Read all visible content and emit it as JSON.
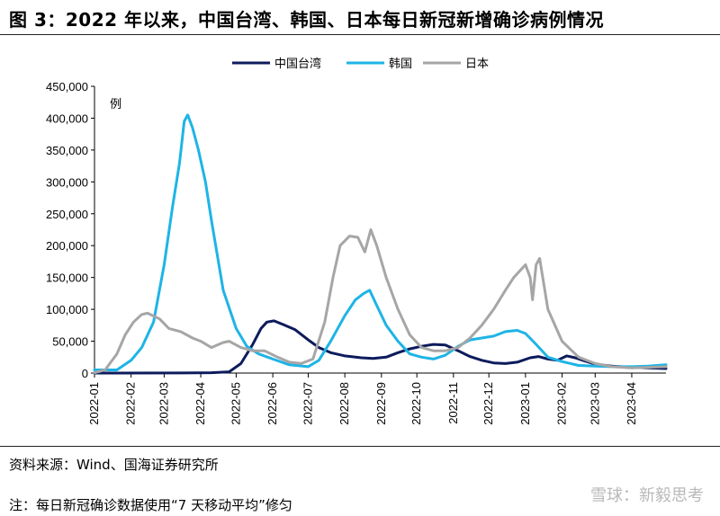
{
  "header": {
    "title": "图 3：2022 年以来，中国台湾、韩国、日本每日新冠新增确诊病例情况"
  },
  "footer": {
    "source": "资料来源：Wind、国海证券研究所",
    "note": "注：每日新冠确诊数据使用“7 天移动平均”修匀",
    "watermark": "雪球：新毅思考"
  },
  "chart_data": {
    "type": "line",
    "ylabel": "例",
    "ylim": [
      0,
      450000
    ],
    "yticks": [
      "0",
      "50,000",
      "100,000",
      "150,000",
      "200,000",
      "250,000",
      "300,000",
      "350,000",
      "400,000",
      "450,000"
    ],
    "xlim": [
      "2022-01-01",
      "2023-04-30"
    ],
    "xticks": [
      "2022-01",
      "2022-02",
      "2022-03",
      "2022-04",
      "2022-05",
      "2022-06",
      "2022-07",
      "2022-08",
      "2022-09",
      "2022-10",
      "2022-11",
      "2022-12",
      "2023-01",
      "2023-02",
      "2023-03",
      "2023-04"
    ],
    "legend_position": "top-center",
    "series": [
      {
        "name": "中国台湾",
        "color": "#0d1b5c",
        "x": [
          "2022-01-01",
          "2022-03-15",
          "2022-04-10",
          "2022-04-25",
          "2022-05-05",
          "2022-05-15",
          "2022-05-22",
          "2022-05-27",
          "2022-06-02",
          "2022-06-10",
          "2022-06-20",
          "2022-07-01",
          "2022-07-10",
          "2022-07-20",
          "2022-08-01",
          "2022-08-15",
          "2022-08-25",
          "2022-09-05",
          "2022-09-15",
          "2022-09-25",
          "2022-10-05",
          "2022-10-15",
          "2022-10-25",
          "2022-11-05",
          "2022-11-15",
          "2022-11-25",
          "2022-12-05",
          "2022-12-15",
          "2022-12-25",
          "2023-01-05",
          "2023-01-12",
          "2023-01-20",
          "2023-01-28",
          "2023-02-05",
          "2023-02-12",
          "2023-02-20",
          "2023-03-01",
          "2023-03-15",
          "2023-04-01",
          "2023-04-15",
          "2023-04-30"
        ],
        "values": [
          10,
          100,
          500,
          2000,
          15000,
          45000,
          70000,
          80000,
          82000,
          76000,
          68000,
          52000,
          40000,
          32000,
          27000,
          24000,
          23000,
          25000,
          32000,
          38000,
          42000,
          45000,
          44000,
          35000,
          26000,
          20000,
          16000,
          15000,
          17000,
          24000,
          26000,
          22000,
          20000,
          27000,
          24000,
          19000,
          14000,
          11000,
          9000,
          8000,
          7000
        ]
      },
      {
        "name": "韩国",
        "color": "#1eb4e6",
        "x": [
          "2022-01-01",
          "2022-01-20",
          "2022-02-01",
          "2022-02-10",
          "2022-02-20",
          "2022-03-01",
          "2022-03-08",
          "2022-03-14",
          "2022-03-18",
          "2022-03-21",
          "2022-03-25",
          "2022-03-30",
          "2022-04-05",
          "2022-04-10",
          "2022-04-20",
          "2022-05-01",
          "2022-05-10",
          "2022-05-20",
          "2022-06-01",
          "2022-06-15",
          "2022-07-01",
          "2022-07-10",
          "2022-07-20",
          "2022-08-01",
          "2022-08-10",
          "2022-08-17",
          "2022-08-22",
          "2022-08-27",
          "2022-09-05",
          "2022-09-15",
          "2022-09-25",
          "2022-10-05",
          "2022-10-15",
          "2022-10-25",
          "2022-11-05",
          "2022-11-15",
          "2022-11-25",
          "2022-12-05",
          "2022-12-15",
          "2022-12-25",
          "2023-01-01",
          "2023-01-10",
          "2023-01-20",
          "2023-02-01",
          "2023-02-15",
          "2023-03-01",
          "2023-03-15",
          "2023-04-01",
          "2023-04-15",
          "2023-04-30"
        ],
        "values": [
          5000,
          5000,
          20000,
          40000,
          80000,
          170000,
          260000,
          330000,
          395000,
          405000,
          385000,
          350000,
          300000,
          240000,
          130000,
          70000,
          42000,
          30000,
          22000,
          13000,
          10000,
          20000,
          50000,
          90000,
          115000,
          125000,
          130000,
          110000,
          75000,
          50000,
          30000,
          25000,
          22000,
          28000,
          42000,
          52000,
          55000,
          58000,
          65000,
          67000,
          62000,
          45000,
          25000,
          18000,
          12000,
          11000,
          10000,
          10000,
          11000,
          13000
        ]
      },
      {
        "name": "日本",
        "color": "#a6a6a6",
        "x": [
          "2022-01-01",
          "2022-01-10",
          "2022-01-20",
          "2022-01-27",
          "2022-02-03",
          "2022-02-10",
          "2022-02-15",
          "2022-02-25",
          "2022-03-05",
          "2022-03-15",
          "2022-03-25",
          "2022-04-01",
          "2022-04-10",
          "2022-04-20",
          "2022-04-25",
          "2022-05-05",
          "2022-05-15",
          "2022-05-25",
          "2022-06-05",
          "2022-06-15",
          "2022-06-25",
          "2022-07-05",
          "2022-07-15",
          "2022-07-22",
          "2022-07-28",
          "2022-08-05",
          "2022-08-12",
          "2022-08-18",
          "2022-08-23",
          "2022-08-28",
          "2022-09-05",
          "2022-09-15",
          "2022-09-25",
          "2022-10-05",
          "2022-10-15",
          "2022-10-25",
          "2022-11-05",
          "2022-11-15",
          "2022-11-25",
          "2022-12-05",
          "2022-12-15",
          "2022-12-22",
          "2023-01-01",
          "2023-01-05",
          "2023-01-07",
          "2023-01-10",
          "2023-01-13",
          "2023-01-20",
          "2023-02-01",
          "2023-02-15",
          "2023-03-01",
          "2023-03-15",
          "2023-04-01",
          "2023-04-15",
          "2023-04-30"
        ],
        "values": [
          500,
          5000,
          30000,
          60000,
          80000,
          92000,
          94000,
          85000,
          70000,
          65000,
          55000,
          50000,
          40000,
          48000,
          50000,
          40000,
          35000,
          35000,
          25000,
          17000,
          15000,
          22000,
          80000,
          150000,
          200000,
          215000,
          213000,
          190000,
          225000,
          200000,
          150000,
          100000,
          60000,
          40000,
          35000,
          35000,
          40000,
          55000,
          75000,
          100000,
          130000,
          150000,
          170000,
          150000,
          115000,
          170000,
          180000,
          100000,
          50000,
          25000,
          15000,
          10000,
          8000,
          9000,
          10000
        ]
      }
    ]
  }
}
